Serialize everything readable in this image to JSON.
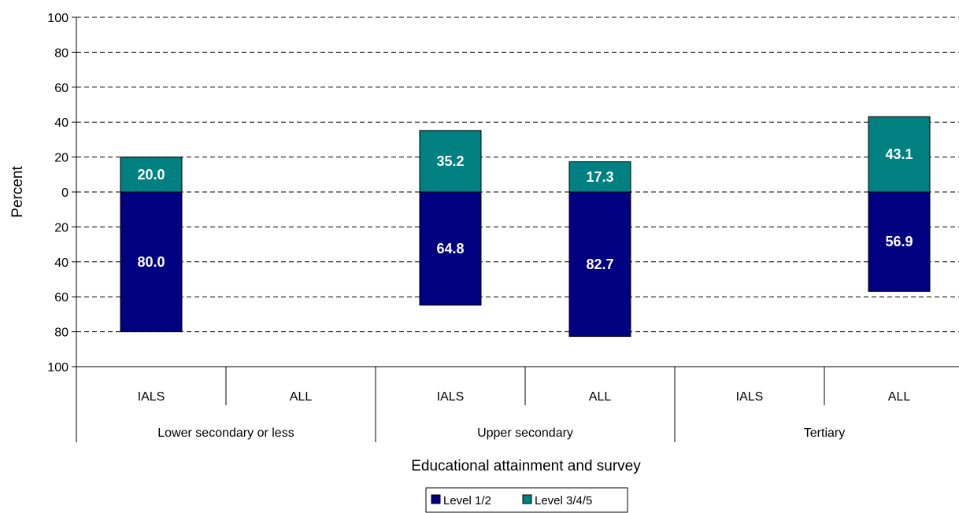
{
  "chart_data": {
    "type": "bar",
    "ylabel": "Percent",
    "xlabel": "Educational attainment and survey",
    "y_axis": {
      "ylim": [
        -100,
        100
      ],
      "ticks": [
        100,
        80,
        60,
        40,
        20,
        0,
        -20,
        -40,
        -60,
        -80,
        -100
      ],
      "tick_labels": [
        "100",
        "80",
        "60",
        "40",
        "20",
        "0",
        "20",
        "40",
        "60",
        "80",
        "100"
      ]
    },
    "grid": true,
    "groups": [
      "Lower secondary or less",
      "Upper secondary",
      "Tertiary"
    ],
    "categories": [
      "IALS",
      "ALL",
      "IALS",
      "ALL",
      "IALS",
      "ALL"
    ],
    "series": [
      {
        "name": "Level 1/2",
        "color": "#000080",
        "direction": "down",
        "values": [
          80.0,
          null,
          64.8,
          82.7,
          null,
          56.9
        ],
        "labels": [
          "80.0",
          "",
          "64.8",
          "82.7",
          "",
          "56.9"
        ]
      },
      {
        "name": "Level 3/4/5",
        "color": "#008080",
        "direction": "up",
        "values": [
          20.0,
          null,
          35.2,
          17.3,
          null,
          43.1
        ],
        "labels": [
          "20.0",
          "",
          "35.2",
          "17.3",
          "",
          "43.1"
        ]
      }
    ],
    "legend_position": "bottom"
  }
}
